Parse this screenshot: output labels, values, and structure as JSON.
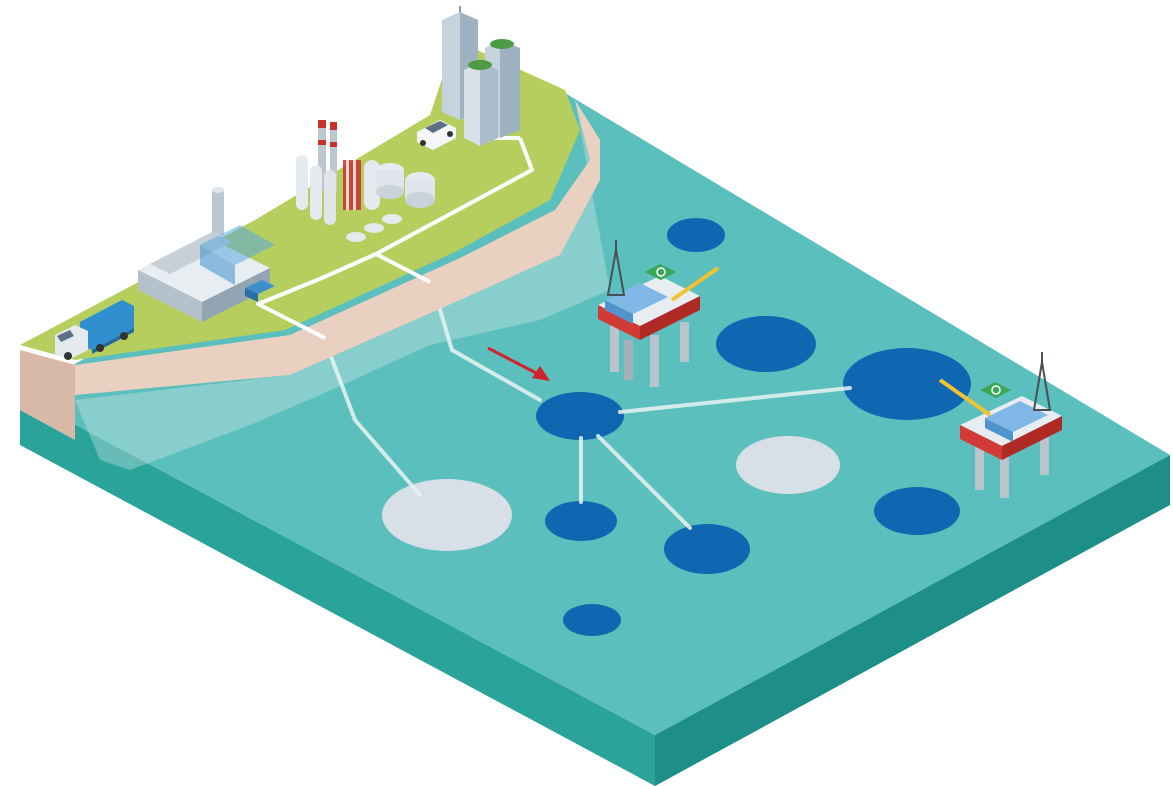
{
  "scene": {
    "colors": {
      "sea_top": "#5bbfbd",
      "sea_side_front": "#2aa39b",
      "sea_side_right": "#1d8f88",
      "land_top": "#b6ce5e",
      "cliff": "#ead0c1",
      "reservoir_active": "#0f67b1",
      "reservoir_inactive": "#d7e0e6",
      "pipeline": "#e8f3f2",
      "road": "#ffffff",
      "arrow": "#d2232a",
      "platform_deck": "#d23b35",
      "helipad": "#3aa757"
    },
    "icons": [
      "factory-icon",
      "refinery-icon",
      "truck-icon",
      "car-icon",
      "skyscraper-icon",
      "offshore-platform-icon",
      "flow-arrow-icon"
    ],
    "reservoirs": {
      "active_count": 8,
      "inactive_count": 2
    },
    "platforms_count": 2
  }
}
